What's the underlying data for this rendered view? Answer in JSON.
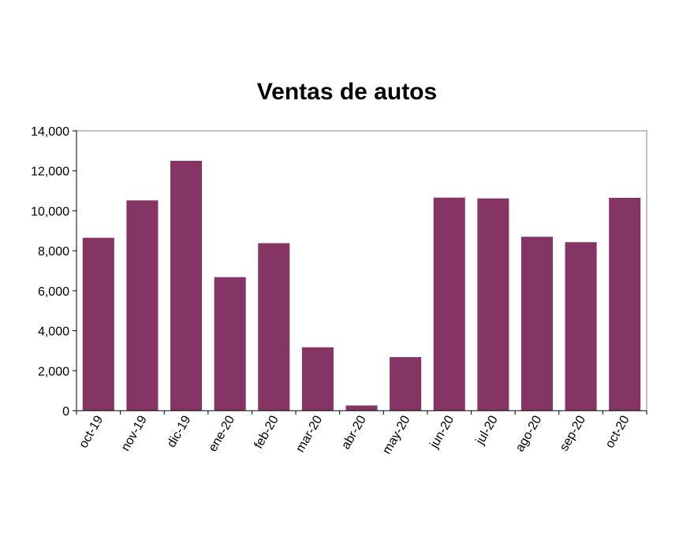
{
  "chart_data": {
    "type": "bar",
    "title": "Ventas de autos",
    "xlabel": "",
    "ylabel": "",
    "categories": [
      "oct-19",
      "nov-19",
      "dic-19",
      "ene-20",
      "feb-20",
      "mar-20",
      "abr-20",
      "may-20",
      "jun-20",
      "jul-20",
      "ago-20",
      "sep-20",
      "oct-20"
    ],
    "values": [
      8650,
      10520,
      12500,
      6680,
      8380,
      3170,
      260,
      2680,
      10660,
      10620,
      8700,
      8430,
      10650
    ],
    "ylim": [
      0,
      14000
    ],
    "yticks": [
      "0",
      "2,000",
      "4,000",
      "6,000",
      "8,000",
      "10,000",
      "12,000",
      "14,000"
    ],
    "grid": false,
    "legend": "none",
    "bar_color": "#843563"
  }
}
